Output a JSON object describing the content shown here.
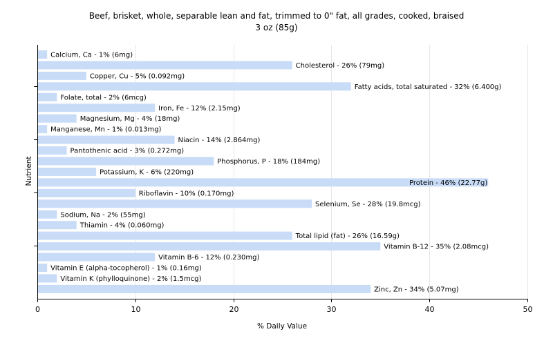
{
  "chart_data": {
    "type": "bar",
    "orientation": "horizontal",
    "title": "Beef, brisket, whole, separable lean and fat, trimmed to 0\" fat, all grades, cooked, braised",
    "subtitle": "3 oz (85g)",
    "xlabel": "% Daily Value",
    "ylabel": "Nutrient",
    "xlim": [
      0,
      50
    ],
    "xticks": [
      "0",
      "10",
      "20",
      "30",
      "40",
      "50"
    ],
    "grid": true,
    "bar_color": "#c8dcf8",
    "categories": [
      "Calcium, Ca",
      "Cholesterol",
      "Copper, Cu",
      "Fatty acids, total saturated",
      "Folate, total",
      "Iron, Fe",
      "Magnesium, Mg",
      "Manganese, Mn",
      "Niacin",
      "Pantothenic acid",
      "Phosphorus, P",
      "Potassium, K",
      "Protein",
      "Riboflavin",
      "Selenium, Se",
      "Sodium, Na",
      "Thiamin",
      "Total lipid (fat)",
      "Vitamin B-12",
      "Vitamin B-6",
      "Vitamin E (alpha-tocopherol)",
      "Vitamin K (phylloquinone)",
      "Zinc, Zn"
    ],
    "values": [
      1,
      26,
      5,
      32,
      2,
      12,
      4,
      1,
      14,
      3,
      18,
      6,
      46,
      10,
      28,
      2,
      4,
      26,
      35,
      12,
      1,
      2,
      34
    ],
    "labels": [
      "Calcium, Ca - 1% (6mg)",
      "Cholesterol - 26% (79mg)",
      "Copper, Cu - 5% (0.092mg)",
      "Fatty acids, total saturated - 32% (6.400g)",
      "Folate, total - 2% (6mcg)",
      "Iron, Fe - 12% (2.15mg)",
      "Magnesium, Mg - 4% (18mg)",
      "Manganese, Mn - 1% (0.013mg)",
      "Niacin - 14% (2.864mg)",
      "Pantothenic acid - 3% (0.272mg)",
      "Phosphorus, P - 18% (184mg)",
      "Potassium, K - 6% (220mg)",
      "Protein - 46% (22.77g)",
      "Riboflavin - 10% (0.170mg)",
      "Selenium, Se - 28% (19.8mcg)",
      "Sodium, Na - 2% (55mg)",
      "Thiamin - 4% (0.060mg)",
      "Total lipid (fat) - 26% (16.59g)",
      "Vitamin B-12 - 35% (2.08mcg)",
      "Vitamin B-6 - 12% (0.230mg)",
      "Vitamin E (alpha-tocopherol) - 1% (0.16mg)",
      "Vitamin K (phylloquinone) - 2% (1.5mcg)",
      "Zinc, Zn - 34% (5.07mg)"
    ]
  }
}
